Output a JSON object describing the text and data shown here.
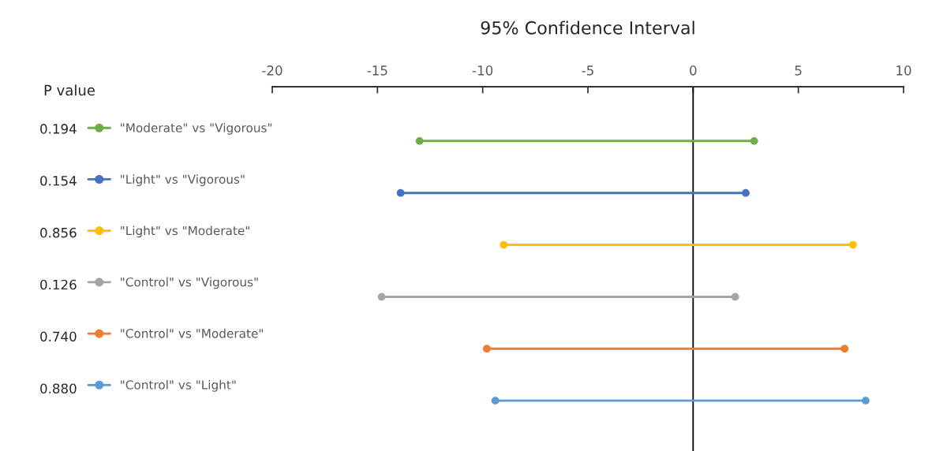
{
  "chart_data": {
    "type": "bar",
    "orientation": "horizontal",
    "title": "95% Confidence Interval",
    "annotations": [
      "P value",
      "0.194",
      "0.154",
      "0.856",
      "0.126",
      "0.740",
      "0.880"
    ],
    "categories": [
      null,
      null,
      null,
      null,
      null,
      null
    ],
    "series": [
      {
        "name": "\"Moderate\" vs \"Vigorous\"",
        "color": "#70ad47",
        "base": [
          -13.0,
          null,
          null,
          null,
          null,
          null
        ],
        "values": [
          15.9,
          null,
          null,
          null,
          null,
          null
        ]
      },
      {
        "name": "\"Light\" vs \"Vigorous\"",
        "color": "#4472c4",
        "base": [
          null,
          -13.9,
          null,
          null,
          null,
          null
        ],
        "values": [
          null,
          16.4,
          null,
          null,
          null,
          null
        ]
      },
      {
        "name": "\"Light\" vs \"Moderate\"",
        "color": "#ffc000",
        "base": [
          null,
          null,
          -9.0,
          null,
          null,
          null
        ],
        "values": [
          null,
          null,
          16.6,
          null,
          null,
          null
        ]
      },
      {
        "name": "\"Control\" vs \"Vigorous\"",
        "color": "#a5a5a5",
        "base": [
          null,
          null,
          null,
          -14.8,
          null,
          null
        ],
        "values": [
          null,
          null,
          null,
          16.8,
          null,
          null
        ]
      },
      {
        "name": "\"Control\" vs \"Moderate\"",
        "color": "#ed7d31",
        "base": [
          null,
          null,
          null,
          null,
          -9.8,
          null
        ],
        "values": [
          null,
          null,
          null,
          null,
          17.0,
          null
        ]
      },
      {
        "name": "\"Control\" vs \"Light\"",
        "color": "#5b9bd5",
        "base": [
          null,
          null,
          null,
          null,
          null,
          -9.4
        ],
        "values": [
          null,
          null,
          null,
          null,
          null,
          17.6
        ]
      },
      {
        "type": "scatter",
        "color": "#70ad47",
        "values": [
          -13.0,
          null,
          null,
          null,
          null,
          null
        ]
      },
      {
        "type": "scatter",
        "color": "#70ad47",
        "values": [
          2.9,
          null,
          null,
          null,
          null,
          null
        ]
      },
      {
        "type": "scatter",
        "color": "#4472c4",
        "values": [
          null,
          -13.9,
          null,
          null,
          null,
          null
        ]
      },
      {
        "type": "scatter",
        "color": "#4472c4",
        "values": [
          null,
          2.5,
          null,
          null,
          null,
          null
        ]
      },
      {
        "type": "scatter",
        "color": "#ffc000",
        "values": [
          null,
          null,
          -9.0,
          null,
          null,
          null
        ]
      },
      {
        "type": "scatter",
        "color": "#ffc000",
        "values": [
          null,
          null,
          7.6,
          null,
          null,
          null
        ]
      },
      {
        "type": "scatter",
        "color": "#a5a5a5",
        "values": [
          null,
          null,
          null,
          -14.8,
          null,
          null
        ]
      },
      {
        "type": "scatter",
        "color": "#a5a5a5",
        "values": [
          null,
          null,
          null,
          2.0,
          null,
          null
        ]
      },
      {
        "type": "scatter",
        "color": "#ed7d31",
        "values": [
          null,
          null,
          null,
          null,
          -9.8,
          null
        ]
      },
      {
        "type": "scatter",
        "color": "#ed7d31",
        "values": [
          null,
          null,
          null,
          null,
          7.2,
          null
        ]
      },
      {
        "type": "scatter",
        "color": "#5b9bd5",
        "values": [
          null,
          null,
          null,
          null,
          null,
          -9.4
        ]
      },
      {
        "type": "scatter",
        "color": "#5b9bd5",
        "values": [
          null,
          null,
          null,
          null,
          null,
          8.2
        ]
      }
    ],
    "xlim": [
      -20,
      10
    ],
    "xticks": [
      -20,
      -15,
      -10,
      -5,
      0,
      5,
      10
    ],
    "ref_lines": [
      {
        "axis": "x",
        "value": 0,
        "color": "#000000"
      }
    ],
    "marker": "circle",
    "legend": "left",
    "grid": false
  }
}
